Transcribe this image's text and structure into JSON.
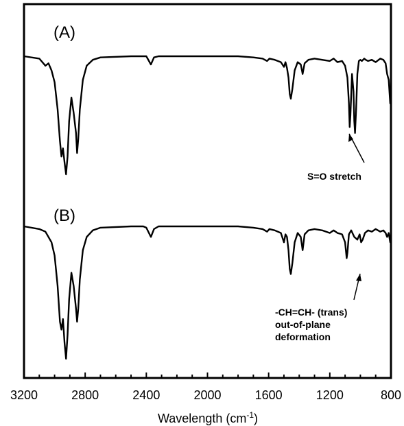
{
  "chart_data": {
    "type": "line",
    "xlabel": "Wavelength (cm",
    "xlabel_sup": "-1",
    "xlabel_close": ")",
    "xlim": [
      3200,
      800
    ],
    "x_reversed": true,
    "x_ticks": [
      "3200",
      "2800",
      "2400",
      "2000",
      "1600",
      "1200",
      "800"
    ],
    "y_ticks_shown": false,
    "series": [
      {
        "name": "(A)",
        "x": [
          3200,
          3100,
          3060,
          3040,
          3020,
          3000,
          2980,
          2965,
          2955,
          2945,
          2935,
          2925,
          2915,
          2905,
          2890,
          2875,
          2860,
          2853,
          2845,
          2835,
          2815,
          2790,
          2750,
          2700,
          2500,
          2400,
          2370,
          2350,
          2320,
          2200,
          2000,
          1800,
          1700,
          1640,
          1610,
          1595,
          1560,
          1520,
          1500,
          1490,
          1480,
          1470,
          1462,
          1455,
          1445,
          1430,
          1410,
          1390,
          1378,
          1365,
          1340,
          1300,
          1250,
          1200,
          1175,
          1150,
          1120,
          1100,
          1085,
          1075,
          1070,
          1065,
          1055,
          1045,
          1040,
          1035,
          1028,
          1020,
          1010,
          1000,
          990,
          975,
          965,
          950,
          925,
          900,
          870,
          850,
          835,
          825,
          815,
          805
        ],
        "y": [
          0.0,
          -0.02,
          -0.08,
          -0.06,
          -0.12,
          -0.22,
          -0.45,
          -0.72,
          -0.85,
          -0.78,
          -0.9,
          -1.0,
          -0.85,
          -0.55,
          -0.35,
          -0.48,
          -0.65,
          -0.82,
          -0.7,
          -0.45,
          -0.2,
          -0.08,
          -0.03,
          -0.01,
          0.0,
          0.0,
          -0.07,
          -0.01,
          0.0,
          0.0,
          0.0,
          0.0,
          -0.01,
          -0.02,
          -0.04,
          -0.02,
          -0.03,
          -0.05,
          -0.09,
          -0.05,
          -0.1,
          -0.18,
          -0.32,
          -0.36,
          -0.28,
          -0.12,
          -0.05,
          -0.07,
          -0.15,
          -0.06,
          -0.03,
          -0.02,
          -0.03,
          -0.04,
          -0.02,
          -0.05,
          -0.04,
          -0.08,
          -0.18,
          -0.4,
          -0.6,
          -0.5,
          -0.15,
          -0.3,
          -0.55,
          -0.65,
          -0.45,
          -0.15,
          -0.04,
          -0.03,
          -0.04,
          -0.02,
          -0.03,
          -0.04,
          -0.03,
          -0.05,
          -0.02,
          -0.03,
          -0.06,
          -0.15,
          -0.2,
          -0.4
        ]
      },
      {
        "name": "(B)",
        "x": [
          3200,
          3100,
          3060,
          3020,
          3000,
          2980,
          2965,
          2955,
          2945,
          2935,
          2925,
          2915,
          2905,
          2890,
          2875,
          2860,
          2853,
          2845,
          2835,
          2815,
          2790,
          2750,
          2700,
          2500,
          2420,
          2400,
          2370,
          2350,
          2320,
          2200,
          2000,
          1800,
          1700,
          1640,
          1610,
          1595,
          1560,
          1520,
          1500,
          1490,
          1480,
          1470,
          1462,
          1455,
          1445,
          1430,
          1410,
          1390,
          1378,
          1365,
          1340,
          1300,
          1250,
          1200,
          1175,
          1150,
          1120,
          1100,
          1090,
          1085,
          1075,
          1060,
          1040,
          1020,
          1005,
          995,
          985,
          970,
          950,
          925,
          900,
          870,
          850,
          835,
          825,
          815,
          805
        ],
        "y": [
          0.0,
          -0.02,
          -0.04,
          -0.12,
          -0.22,
          -0.45,
          -0.72,
          -0.78,
          -0.7,
          -0.88,
          -1.0,
          -0.82,
          -0.55,
          -0.35,
          -0.45,
          -0.62,
          -0.72,
          -0.62,
          -0.4,
          -0.18,
          -0.08,
          -0.03,
          -0.01,
          0.0,
          0.0,
          -0.01,
          -0.08,
          -0.02,
          0.0,
          0.0,
          0.0,
          0.0,
          -0.01,
          -0.02,
          -0.04,
          -0.02,
          -0.03,
          -0.05,
          -0.12,
          -0.06,
          -0.08,
          -0.18,
          -0.32,
          -0.36,
          -0.28,
          -0.12,
          -0.05,
          -0.08,
          -0.18,
          -0.06,
          -0.03,
          -0.02,
          -0.03,
          -0.05,
          -0.03,
          -0.05,
          -0.06,
          -0.12,
          -0.24,
          -0.2,
          -0.06,
          -0.03,
          -0.08,
          -0.1,
          -0.06,
          -0.12,
          -0.1,
          -0.05,
          -0.03,
          -0.04,
          -0.02,
          -0.04,
          -0.03,
          -0.05,
          -0.08,
          -0.05,
          -0.12
        ]
      }
    ],
    "panel_labels": [
      "(A)",
      "(B)"
    ],
    "annotations": [
      {
        "text": "S=O stretch",
        "points_to_x": 1040,
        "series": 0
      },
      {
        "lines": [
          "-CH=CH- (trans)",
          "out-of-plane",
          "deformation"
        ],
        "points_to_x": 990,
        "series": 1
      }
    ]
  }
}
